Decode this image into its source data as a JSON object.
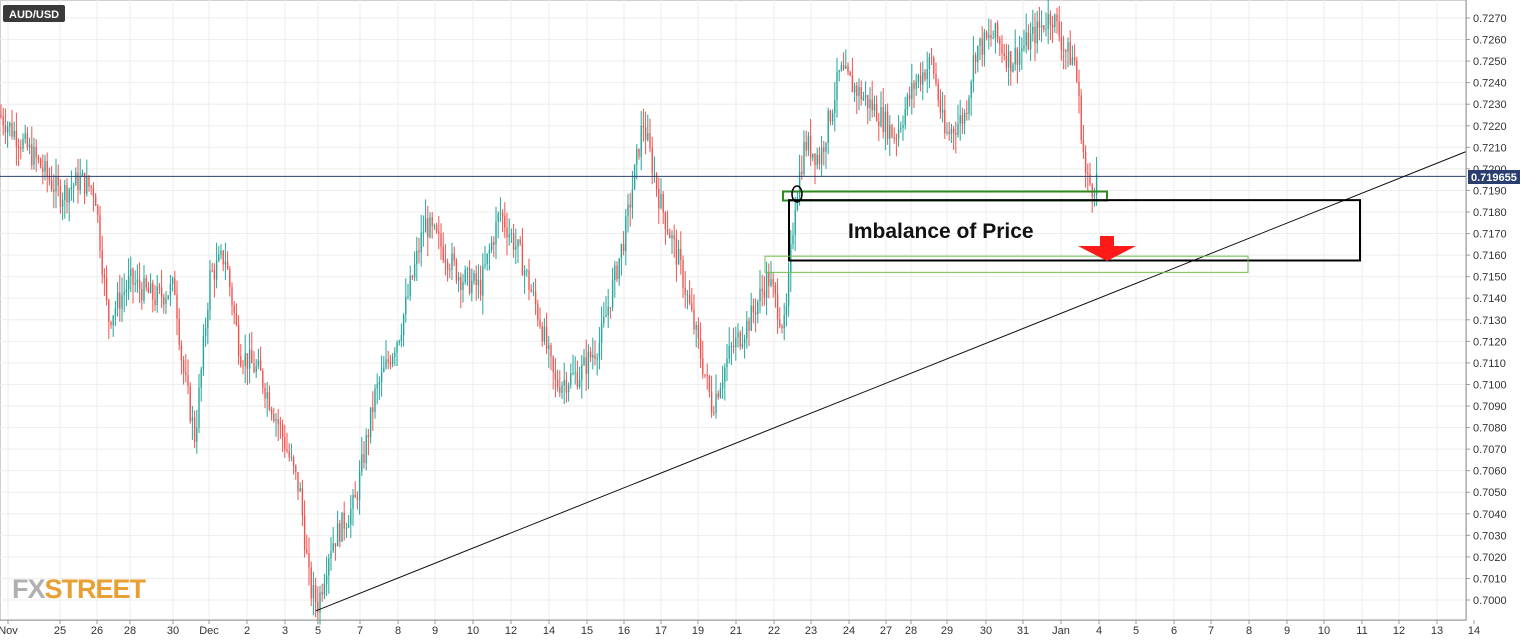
{
  "symbol": "AUD/USD",
  "current_price": "0.719655",
  "logo": {
    "left": "FX",
    "right": "STREET",
    "color_left": "#b0b0b0",
    "color_right": "#e8a035"
  },
  "annotation": "Imbalance of Price",
  "colors": {
    "up": "#26a69a",
    "down": "#ef5350",
    "grid": "#eeeeee",
    "zone_green": "#2e8b1e",
    "zone_green_light": "#6fbf4f",
    "arrow": "#ff1a1a",
    "price_line": "#2a3f6f",
    "symbol_bg": "#3a3a3a"
  },
  "chart_data": {
    "type": "candlestick",
    "series_name": "AUD/USD",
    "y_range": [
      0.6995,
      0.728
    ],
    "y_ticks": [
      "0.7000",
      "0.7010",
      "0.7020",
      "0.7030",
      "0.7040",
      "0.7050",
      "0.7060",
      "0.7070",
      "0.7080",
      "0.7090",
      "0.7100",
      "0.7110",
      "0.7120",
      "0.7130",
      "0.7140",
      "0.7150",
      "0.7160",
      "0.7170",
      "0.7180",
      "0.7190",
      "0.7200",
      "0.7210",
      "0.7220",
      "0.7230",
      "0.7240",
      "0.7250",
      "0.7260",
      "0.7270"
    ],
    "x_labels": [
      "Nov",
      "25",
      "26",
      "28",
      "30",
      "Dec",
      "2",
      "3",
      "5",
      "7",
      "8",
      "9",
      "10",
      "12",
      "14",
      "15",
      "16",
      "17",
      "19",
      "21",
      "22",
      "23",
      "24",
      "27",
      "28",
      "29",
      "30",
      "31",
      "Jan",
      "4",
      "5",
      "6",
      "7",
      "8",
      "9",
      "10",
      "11",
      "12",
      "13",
      "14"
    ],
    "current_price": 0.719655,
    "price_path": [
      [
        0,
        0.7225
      ],
      [
        35,
        0.7205
      ],
      [
        60,
        0.7188
      ],
      [
        80,
        0.7195
      ],
      [
        95,
        0.719
      ],
      [
        108,
        0.713
      ],
      [
        130,
        0.7148
      ],
      [
        155,
        0.714
      ],
      [
        175,
        0.7145
      ],
      [
        182,
        0.711
      ],
      [
        195,
        0.7075
      ],
      [
        210,
        0.715
      ],
      [
        225,
        0.716
      ],
      [
        240,
        0.7115
      ],
      [
        260,
        0.7105
      ],
      [
        280,
        0.708
      ],
      [
        300,
        0.705
      ],
      [
        310,
        0.7005
      ],
      [
        318,
        0.6998
      ],
      [
        330,
        0.7025
      ],
      [
        355,
        0.7045
      ],
      [
        375,
        0.7095
      ],
      [
        400,
        0.7125
      ],
      [
        425,
        0.7175
      ],
      [
        440,
        0.7165
      ],
      [
        460,
        0.715
      ],
      [
        480,
        0.7145
      ],
      [
        500,
        0.718
      ],
      [
        520,
        0.716
      ],
      [
        540,
        0.713
      ],
      [
        555,
        0.71
      ],
      [
        580,
        0.7105
      ],
      [
        600,
        0.712
      ],
      [
        625,
        0.717
      ],
      [
        643,
        0.7222
      ],
      [
        660,
        0.7185
      ],
      [
        680,
        0.7155
      ],
      [
        700,
        0.7115
      ],
      [
        712,
        0.709
      ],
      [
        730,
        0.7115
      ],
      [
        750,
        0.713
      ],
      [
        768,
        0.715
      ],
      [
        785,
        0.7125
      ],
      [
        795,
        0.7185
      ],
      [
        805,
        0.7212
      ],
      [
        820,
        0.7205
      ],
      [
        840,
        0.7245
      ],
      [
        860,
        0.7235
      ],
      [
        880,
        0.7225
      ],
      [
        895,
        0.7215
      ],
      [
        915,
        0.724
      ],
      [
        932,
        0.725
      ],
      [
        945,
        0.7215
      ],
      [
        965,
        0.7225
      ],
      [
        975,
        0.7255
      ],
      [
        995,
        0.7262
      ],
      [
        1010,
        0.725
      ],
      [
        1030,
        0.726
      ],
      [
        1052,
        0.7272
      ],
      [
        1065,
        0.7255
      ],
      [
        1075,
        0.725
      ],
      [
        1082,
        0.7215
      ],
      [
        1086,
        0.7195
      ],
      [
        1092,
        0.7192
      ],
      [
        1098,
        0.7196
      ]
    ],
    "zones": [
      {
        "label": "order-block-upper",
        "price_top": 0.71895,
        "price_bottom": 0.7186
      },
      {
        "label": "imbalance-box",
        "price_top": 0.71855,
        "price_bottom": 0.71575
      },
      {
        "label": "order-block-lower",
        "price_top": 0.71595,
        "price_bottom": 0.7152
      }
    ],
    "trendline": {
      "from_price": 0.6995,
      "to_price": 0.7208
    },
    "grid": true
  }
}
